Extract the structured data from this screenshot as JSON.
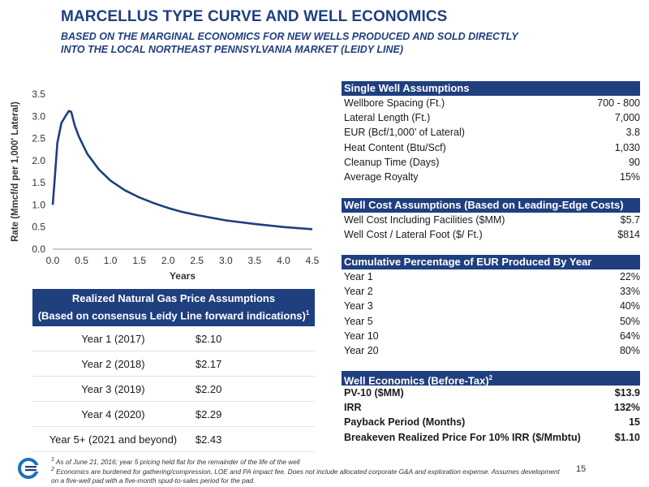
{
  "header": {
    "title": "MARCELLUS TYPE CURVE AND WELL ECONOMICS",
    "subtitle_line1": "BASED ON THE MARGINAL ECONOMICS FOR NEW WELLS PRODUCED AND SOLD DIRECTLY",
    "subtitle_line2": "INTO THE LOCAL NORTHEAST PENNSYLVANIA MARKET (LEIDY LINE)"
  },
  "chart_data": {
    "type": "line",
    "xlabel": "Years",
    "ylabel": "Rate (Mmcf/d per 1,000' Lateral)",
    "xlim": [
      0,
      4.5
    ],
    "ylim": [
      0,
      3.5
    ],
    "x_ticks": [
      "0.0",
      "0.5",
      "1.0",
      "1.5",
      "2.0",
      "2.5",
      "3.0",
      "3.5",
      "4.0",
      "4.5"
    ],
    "y_ticks": [
      "0.0",
      "0.5",
      "1.0",
      "1.5",
      "2.0",
      "2.5",
      "3.0",
      "3.5"
    ],
    "grid": false,
    "color": "#1f3f7f",
    "series": [
      {
        "x": [
          0.0,
          0.03,
          0.08,
          0.15,
          0.22,
          0.28,
          0.32,
          0.38,
          0.45,
          0.6,
          0.8,
          1.0,
          1.25,
          1.5,
          1.75,
          2.0,
          2.25,
          2.5,
          3.0,
          3.5,
          4.0,
          4.5
        ],
        "y": [
          1.0,
          1.5,
          2.4,
          2.85,
          3.0,
          3.12,
          3.1,
          2.8,
          2.55,
          2.15,
          1.8,
          1.55,
          1.33,
          1.17,
          1.04,
          0.93,
          0.84,
          0.77,
          0.65,
          0.57,
          0.5,
          0.45
        ]
      }
    ]
  },
  "price_table": {
    "heading_line1": "Realized Natural Gas Price Assumptions",
    "heading_line2": "(Based on consensus Leidy Line forward indications)",
    "heading_sup": "1",
    "rows": [
      {
        "year": "Year 1 (2017)",
        "price": "$2.10"
      },
      {
        "year": "Year 2 (2018)",
        "price": "$2.17"
      },
      {
        "year": "Year 3 (2019)",
        "price": "$2.20"
      },
      {
        "year": "Year 4 (2020)",
        "price": "$2.29"
      },
      {
        "year": "Year 5+ (2021 and beyond)",
        "price": "$2.43"
      }
    ]
  },
  "single_well": {
    "heading": "Single Well Assumptions",
    "rows": [
      {
        "label": "Wellbore Spacing (Ft.)",
        "value": "700 - 800"
      },
      {
        "label": "Lateral Length (Ft.)",
        "value": "7,000"
      },
      {
        "label": "EUR (Bcf/1,000’ of Lateral)",
        "value": "3.8"
      },
      {
        "label": "Heat Content (Btu/Scf)",
        "value": "1,030"
      },
      {
        "label": "Cleanup Time (Days)",
        "value": "90"
      },
      {
        "label": "Average Royalty",
        "value": "15%"
      }
    ]
  },
  "well_cost": {
    "heading": "Well Cost Assumptions (Based on Leading-Edge Costs)",
    "rows": [
      {
        "label": "Well Cost Including Facilities ($MM)",
        "value": "$5.7"
      },
      {
        "label": "Well Cost / Lateral Foot ($/ Ft.)",
        "value": "$814"
      }
    ]
  },
  "cumulative": {
    "heading": "Cumulative Percentage of EUR Produced By Year",
    "rows": [
      {
        "label": "Year 1",
        "value": "22%"
      },
      {
        "label": "Year 2",
        "value": "33%"
      },
      {
        "label": "Year 3",
        "value": "40%"
      },
      {
        "label": "Year 5",
        "value": "50%"
      },
      {
        "label": "Year 10",
        "value": "64%"
      },
      {
        "label": "Year 20",
        "value": "80%"
      }
    ]
  },
  "economics": {
    "heading": "Well Economics (Before-Tax)",
    "heading_sup": "2",
    "rows": [
      {
        "label": "PV-10 ($MM)",
        "value": "$13.9",
        "bold": true
      },
      {
        "label": "IRR",
        "value": "132%",
        "bold": true
      },
      {
        "label": "Payback Period (Months)",
        "value": "15",
        "bold": true
      },
      {
        "label": "Breakeven Realized Price For 10% IRR ($/Mmbtu)",
        "value": "$1.10",
        "bold": true
      }
    ]
  },
  "footnotes": {
    "note1_mark": "1",
    "note1": "As of June 21, 2016; year 5 pricing held flat for the remainder of the life of the well",
    "note2_mark": "2",
    "note2": "Economics are burdened for gathering/compression, LOE and PA impact fee. Does not include allocated corporate G&A and exploration expense. Assumes development on a five-well pad with a five-month spud-to-sales period for the pad."
  },
  "page_number": "15",
  "logo_icon": "company-logo-icon"
}
